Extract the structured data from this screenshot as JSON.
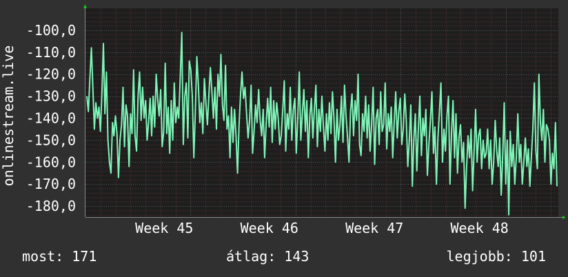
{
  "colors": {
    "background": "#303030",
    "plot_background": "#1e1e1e",
    "grid_minor": "#4a2c2c",
    "grid_major": "#5a5a5a",
    "line": "#7ff5b8",
    "text": "#ffffff",
    "arrow": "#18c018"
  },
  "chart_data": {
    "type": "line",
    "title": "",
    "xlabel": "",
    "ylabel": "onlinestream.live",
    "ylim": [
      -185,
      -90
    ],
    "yticks": [
      -100,
      -110,
      -120,
      -130,
      -140,
      -150,
      -160,
      -170,
      -180
    ],
    "ytick_labels": [
      "-100,0",
      "-110,0",
      "-120,0",
      "-130,0",
      "-140,0",
      "-150,0",
      "-160,0",
      "-170,0",
      "-180,0"
    ],
    "xlim": [
      0,
      4.5
    ],
    "xticks": [
      {
        "x": 0.75,
        "label": "Week 45"
      },
      {
        "x": 1.75,
        "label": "Week 46"
      },
      {
        "x": 2.75,
        "label": "Week 47"
      },
      {
        "x": 3.75,
        "label": "Week 48"
      }
    ],
    "grid": true,
    "series": [
      {
        "values": [
          -130,
          -137,
          -122,
          -108,
          -126,
          -145,
          -133,
          -140,
          -135,
          -146,
          -128,
          -106,
          -138,
          -119,
          -150,
          -160,
          -165,
          -142,
          -148,
          -139,
          -147,
          -167,
          -150,
          -143,
          -126,
          -153,
          -134,
          -139,
          -162,
          -138,
          -147,
          -118,
          -148,
          -155,
          -130,
          -119,
          -141,
          -126,
          -140,
          -132,
          -150,
          -142,
          -131,
          -148,
          -130,
          -144,
          -120,
          -131,
          -139,
          -127,
          -153,
          -146,
          -115,
          -147,
          -135,
          -156,
          -132,
          -150,
          -124,
          -142,
          -135,
          -140,
          -121,
          -101,
          -152,
          -130,
          -124,
          -149,
          -114,
          -118,
          -130,
          -158,
          -137,
          -112,
          -125,
          -142,
          -133,
          -147,
          -122,
          -133,
          -143,
          -129,
          -117,
          -128,
          -140,
          -126,
          -145,
          -120,
          -130,
          -111,
          -134,
          -141,
          -116,
          -145,
          -139,
          -158,
          -135,
          -151,
          -136,
          -148,
          -165,
          -143,
          -129,
          -119,
          -131,
          -126,
          -138,
          -149,
          -141,
          -125,
          -156,
          -146,
          -134,
          -142,
          -127,
          -141,
          -148,
          -136,
          -158,
          -143,
          -131,
          -144,
          -126,
          -151,
          -132,
          -145,
          -133,
          -140,
          -152,
          -148,
          -136,
          -123,
          -155,
          -138,
          -145,
          -126,
          -150,
          -136,
          -131,
          -156,
          -140,
          -119,
          -150,
          -138,
          -127,
          -146,
          -132,
          -158,
          -139,
          -131,
          -149,
          -136,
          -125,
          -153,
          -136,
          -146,
          -130,
          -144,
          -155,
          -138,
          -150,
          -133,
          -147,
          -128,
          -140,
          -160,
          -136,
          -150,
          -143,
          -130,
          -151,
          -125,
          -139,
          -149,
          -160,
          -137,
          -129,
          -148,
          -132,
          -141,
          -120,
          -152,
          -157,
          -138,
          -146,
          -130,
          -149,
          -134,
          -155,
          -143,
          -126,
          -161,
          -140,
          -136,
          -152,
          -128,
          -146,
          -143,
          -124,
          -154,
          -138,
          -146,
          -135,
          -158,
          -142,
          -128,
          -149,
          -137,
          -131,
          -152,
          -145,
          -129,
          -141,
          -162,
          -150,
          -134,
          -171,
          -150,
          -138,
          -164,
          -145,
          -130,
          -157,
          -140,
          -148,
          -136,
          -166,
          -152,
          -141,
          -128,
          -156,
          -144,
          -170,
          -149,
          -137,
          -124,
          -160,
          -145,
          -155,
          -139,
          -130,
          -170,
          -147,
          -132,
          -158,
          -138,
          -165,
          -149,
          -143,
          -160,
          -151,
          -181,
          -163,
          -148,
          -158,
          -145,
          -173,
          -155,
          -136,
          -160,
          -148,
          -145,
          -163,
          -150,
          -158,
          -156,
          -145,
          -163,
          -150,
          -170,
          -160,
          -141,
          -155,
          -162,
          -149,
          -175,
          -157,
          -133,
          -170,
          -150,
          -184,
          -146,
          -162,
          -152,
          -170,
          -158,
          -138,
          -160,
          -152,
          -170,
          -160,
          -149,
          -162,
          -154,
          -171,
          -158,
          -145,
          -124,
          -155,
          -163,
          -120,
          -142,
          -150,
          -136,
          -160,
          -143,
          -145,
          -150,
          -170,
          -156,
          -163,
          -142,
          -171
        ]
      }
    ]
  },
  "stats": {
    "now": "most: 171",
    "average": "átlag: 143",
    "best": "legjobb: 101"
  }
}
